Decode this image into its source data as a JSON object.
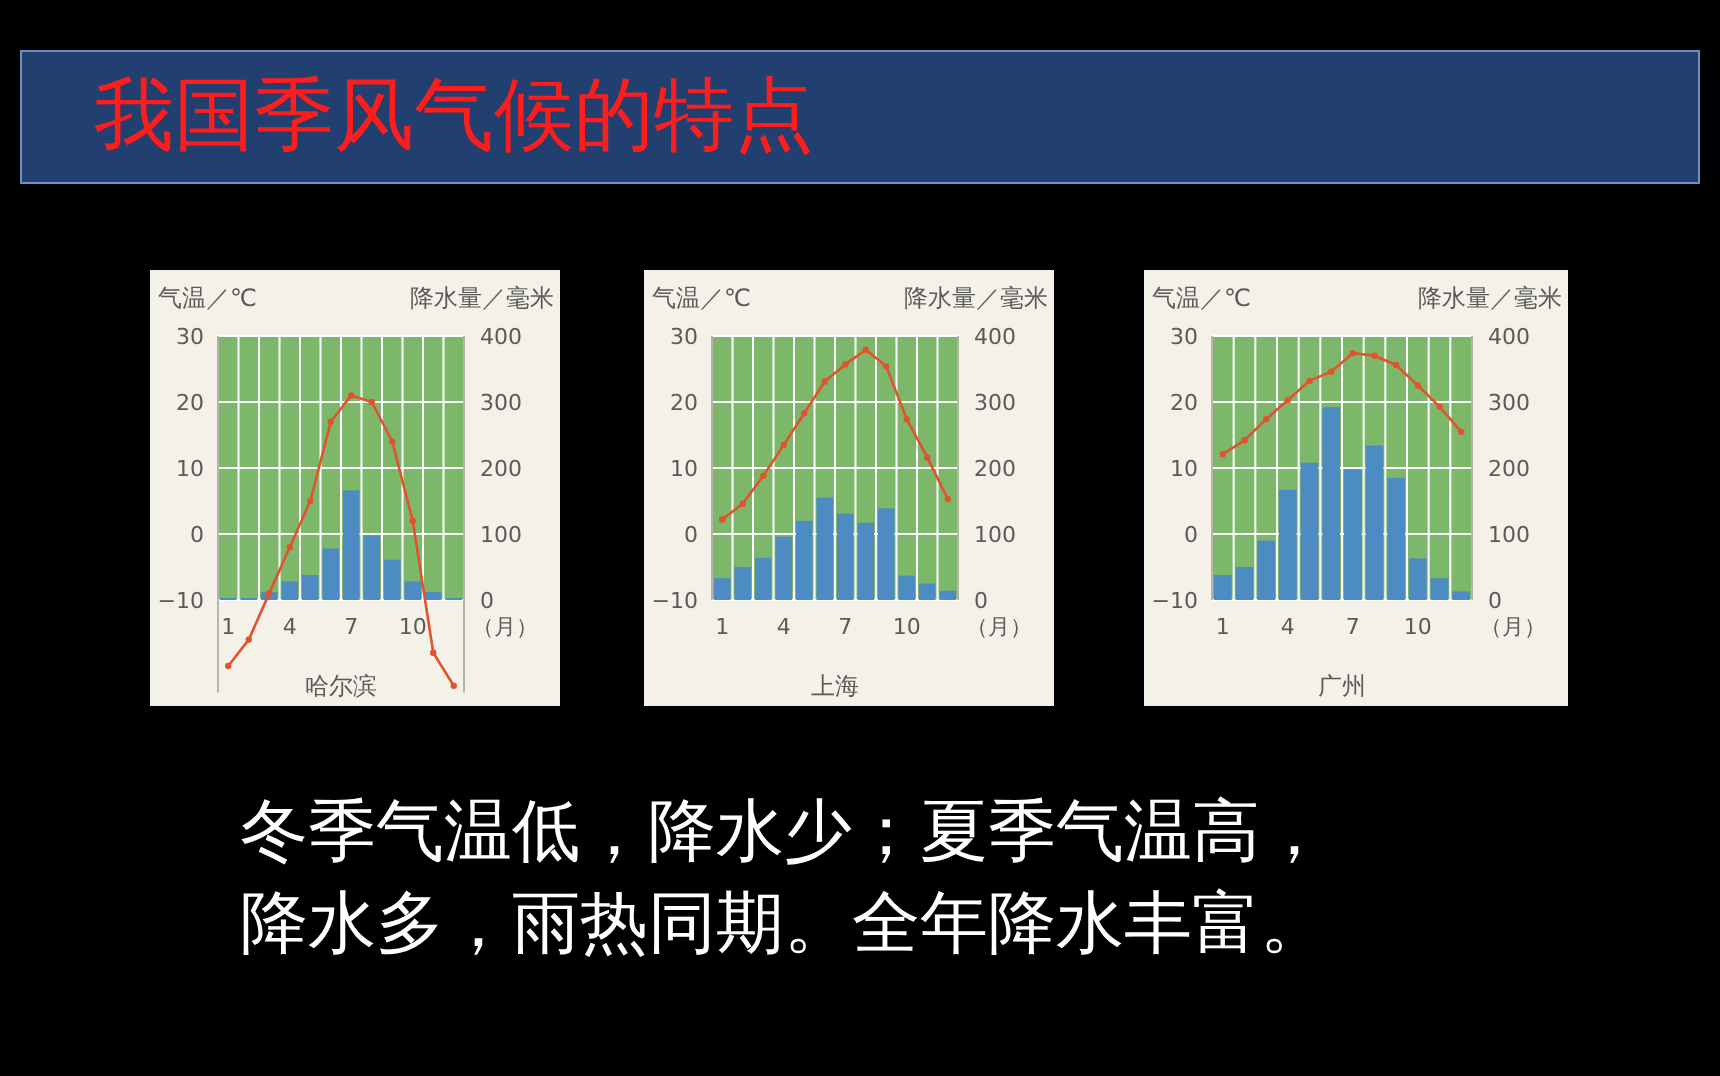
{
  "chart_data": [
    {
      "type": "other",
      "title": "我国季风气候的特点"
    },
    {
      "type": "bar",
      "title": "哈尔滨",
      "ylabel": "气温／℃",
      "y2label": "降水量／毫米",
      "xlabel": "（月）",
      "categories": [
        "1",
        null,
        null,
        "4",
        null,
        null,
        "7",
        null,
        null,
        "10",
        null,
        null
      ],
      "ylim": [
        -24,
        30
      ],
      "yticks": [
        -10,
        0,
        10,
        20,
        30
      ],
      "y2lim": [
        -140,
        400
      ],
      "y2ticks": [
        0,
        100,
        200,
        300,
        400
      ],
      "grid": true,
      "marker": "circle",
      "bands": [
        {
          "axis": "y2",
          "from": 0,
          "to": 400,
          "color": "#7db86a"
        }
      ],
      "series": [
        {
          "type": "bar",
          "axis": "y2",
          "color": "#4d8cc2",
          "values": [
            3,
            3,
            12,
            28,
            38,
            78,
            166,
            98,
            61,
            28,
            12,
            3
          ]
        },
        {
          "type": "line",
          "axis": "y",
          "color": "#e2522f",
          "values": [
            -20,
            -16,
            -9,
            -2,
            5,
            17,
            21,
            20,
            14,
            2,
            -18,
            -23
          ]
        }
      ]
    },
    {
      "type": "bar",
      "title": "上海",
      "ylabel": "气温／℃",
      "y2label": "降水量／毫米",
      "xlabel": "（月）",
      "categories": [
        "1",
        null,
        null,
        "4",
        null,
        null,
        "7",
        null,
        null,
        "10",
        null,
        null
      ],
      "ylim": [
        -10,
        30
      ],
      "yticks": [
        -10,
        0,
        10,
        20,
        30
      ],
      "y2lim": [
        0,
        400
      ],
      "y2ticks": [
        0,
        100,
        200,
        300,
        400
      ],
      "grid": true,
      "marker": "circle",
      "bands": [
        {
          "axis": "y2",
          "from": 0,
          "to": 400,
          "color": "#7db86a"
        }
      ],
      "series": [
        {
          "type": "bar",
          "axis": "y2",
          "color": "#4d8cc2",
          "values": [
            33,
            50,
            64,
            96,
            120,
            155,
            131,
            117,
            139,
            37,
            25,
            14
          ]
        },
        {
          "type": "line",
          "axis": "y",
          "color": "#e2522f",
          "values": [
            2.2,
            4.6,
            8.8,
            13.5,
            18.3,
            23.1,
            25.7,
            27.9,
            25.4,
            17.4,
            11.6,
            5.3
          ]
        }
      ]
    },
    {
      "type": "bar",
      "title": "广州",
      "ylabel": "气温／℃",
      "y2label": "降水量／毫米",
      "xlabel": "（月）",
      "categories": [
        "1",
        null,
        null,
        "4",
        null,
        null,
        "7",
        null,
        null,
        "10",
        null,
        null
      ],
      "ylim": [
        -10,
        30
      ],
      "yticks": [
        -10,
        0,
        10,
        20,
        30
      ],
      "y2lim": [
        0,
        400
      ],
      "y2ticks": [
        0,
        100,
        200,
        300,
        400
      ],
      "grid": true,
      "marker": "circle",
      "bands": [
        {
          "axis": "y2",
          "from": 0,
          "to": 400,
          "color": "#7db86a"
        }
      ],
      "series": [
        {
          "type": "bar",
          "axis": "y2",
          "color": "#4d8cc2",
          "values": [
            38,
            50,
            90,
            167,
            208,
            292,
            198,
            234,
            185,
            63,
            33,
            13
          ]
        },
        {
          "type": "line",
          "axis": "y",
          "color": "#e2522f",
          "values": [
            12.1,
            14.2,
            17.4,
            20.3,
            23.2,
            24.6,
            27.4,
            27.0,
            25.6,
            22.5,
            19.3,
            15.5
          ]
        }
      ]
    },
    {
      "type": "other",
      "annotations": [
        "冬季气温低，降水少；夏季气温高，降水多，雨热同期。全年降水丰富。"
      ]
    }
  ]
}
